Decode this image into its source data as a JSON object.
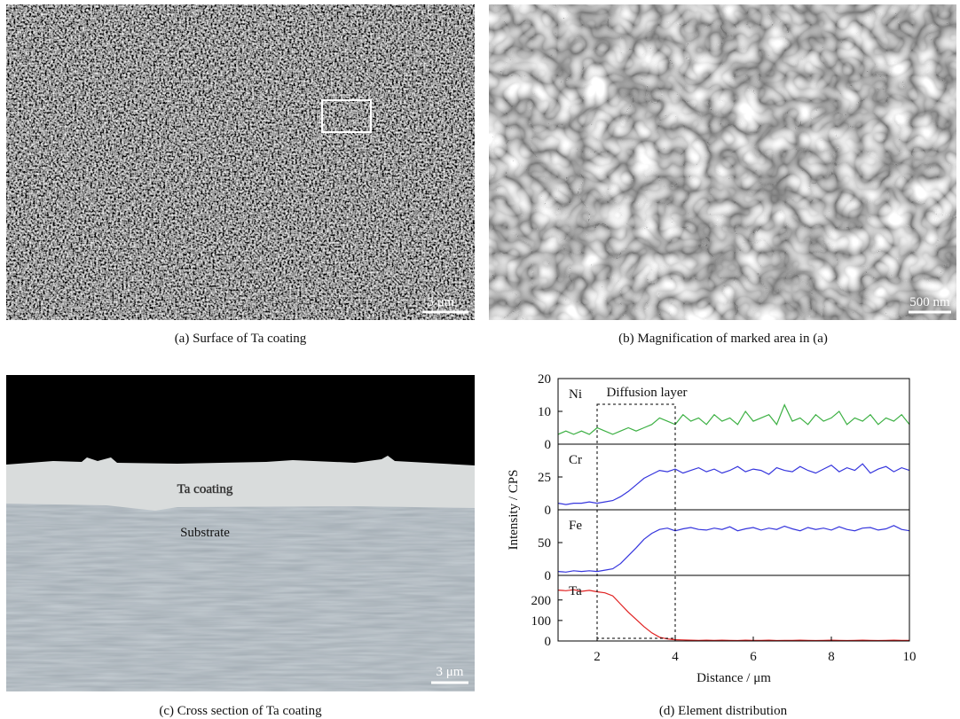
{
  "panels": [
    {
      "caption": "(a) Surface of Ta coating",
      "scale_bar": "5 μm"
    },
    {
      "caption": "(b) Magnification of marked area in (a)",
      "scale_bar": "500 nm"
    },
    {
      "caption": "(c) Cross section of Ta coating",
      "scale_bar": "3 μm",
      "labels": [
        "Ta coating",
        "Substrate"
      ]
    },
    {
      "caption": "(d) Element distribution"
    }
  ],
  "chart_data": {
    "type": "line",
    "xlabel": "Distance / μm",
    "ylabel": "Intensity / CPS",
    "annotation": "Diffusion layer",
    "highlight_x": [
      2,
      4
    ],
    "xlim": [
      1,
      10
    ],
    "xticks": [
      2,
      4,
      6,
      8,
      10
    ],
    "x": [
      1,
      1.2,
      1.4,
      1.6,
      1.8,
      2,
      2.2,
      2.4,
      2.6,
      2.8,
      3,
      3.2,
      3.4,
      3.6,
      3.8,
      4,
      4.2,
      4.4,
      4.6,
      4.8,
      5,
      5.2,
      5.4,
      5.6,
      5.8,
      6,
      6.2,
      6.4,
      6.6,
      6.8,
      7,
      7.2,
      7.4,
      7.6,
      7.8,
      8,
      8.2,
      8.4,
      8.6,
      8.8,
      9,
      9.2,
      9.4,
      9.6,
      9.8,
      10
    ],
    "series": [
      {
        "name": "Ni",
        "color": "#3cb043",
        "ylim": [
          0,
          20
        ],
        "yticks": [
          0,
          10,
          20
        ],
        "values": [
          3,
          4,
          3,
          4,
          3,
          5,
          4,
          3,
          4,
          5,
          4,
          5,
          6,
          8,
          7,
          6,
          9,
          7,
          8,
          6,
          9,
          7,
          8,
          6,
          10,
          7,
          8,
          9,
          6,
          12,
          7,
          8,
          6,
          9,
          7,
          8,
          10,
          6,
          8,
          7,
          9,
          6,
          8,
          7,
          9,
          6
        ]
      },
      {
        "name": "Cr",
        "color": "#3535dd",
        "ylim": [
          0,
          50
        ],
        "yticks": [
          0,
          25
        ],
        "values": [
          5,
          4,
          5,
          5,
          6,
          5,
          6,
          7,
          10,
          14,
          19,
          24,
          27,
          30,
          29,
          31,
          28,
          30,
          32,
          29,
          31,
          28,
          30,
          33,
          29,
          31,
          30,
          27,
          32,
          30,
          29,
          33,
          30,
          28,
          31,
          34,
          29,
          32,
          30,
          35,
          28,
          31,
          33,
          29,
          32,
          30
        ]
      },
      {
        "name": "Fe",
        "color": "#3535dd",
        "ylim": [
          0,
          100
        ],
        "yticks": [
          0,
          50
        ],
        "values": [
          6,
          5,
          7,
          6,
          7,
          6,
          8,
          10,
          18,
          30,
          42,
          55,
          64,
          70,
          72,
          68,
          71,
          73,
          70,
          69,
          72,
          70,
          74,
          68,
          71,
          73,
          69,
          72,
          70,
          75,
          71,
          68,
          73,
          70,
          72,
          69,
          74,
          70,
          68,
          72,
          73,
          69,
          71,
          76,
          70,
          68
        ]
      },
      {
        "name": "Ta",
        "color": "#e02020",
        "ylim": [
          0,
          320
        ],
        "yticks": [
          0,
          100,
          200
        ],
        "values": [
          248,
          245,
          250,
          242,
          247,
          240,
          235,
          220,
          180,
          140,
          105,
          70,
          40,
          18,
          10,
          6,
          5,
          4,
          3,
          4,
          3,
          4,
          3,
          2,
          4,
          3,
          3,
          4,
          2,
          3,
          3,
          4,
          3,
          2,
          3,
          4,
          3,
          2,
          3,
          4,
          3,
          2,
          3,
          4,
          3,
          3
        ]
      }
    ]
  }
}
